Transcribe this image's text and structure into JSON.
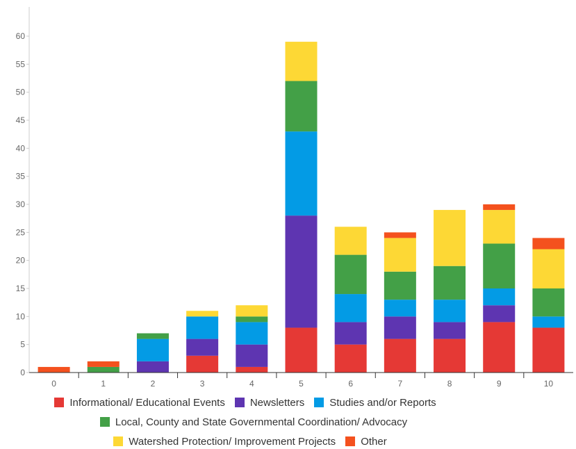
{
  "chart_data": {
    "type": "bar",
    "stacked": true,
    "categories": [
      "0",
      "1",
      "2",
      "3",
      "4",
      "5",
      "6",
      "7",
      "8",
      "9",
      "10"
    ],
    "ylim": [
      0,
      60
    ],
    "yticks": [
      0,
      5,
      10,
      15,
      20,
      25,
      30,
      35,
      40,
      45,
      50,
      55,
      60
    ],
    "grid": false,
    "legend_position": "bottom",
    "series": [
      {
        "name": "Informational/ Educational Events",
        "color": "#e53935",
        "values": [
          0,
          0,
          0,
          3,
          1,
          8,
          5,
          6,
          6,
          9,
          8
        ]
      },
      {
        "name": "Newsletters",
        "color": "#5e35b1",
        "values": [
          0,
          0,
          2,
          3,
          4,
          20,
          4,
          4,
          3,
          3,
          0
        ]
      },
      {
        "name": "Studies and/or Reports",
        "color": "#039be5",
        "values": [
          0,
          0,
          4,
          4,
          4,
          15,
          5,
          3,
          4,
          3,
          2
        ]
      },
      {
        "name": "Local, County and State Governmental Coordination/ Advocacy",
        "color": "#43a047",
        "values": [
          0,
          1,
          1,
          0,
          1,
          9,
          7,
          5,
          6,
          8,
          5
        ]
      },
      {
        "name": "Watershed Protection/ Improvement Projects",
        "color": "#fdd835",
        "values": [
          0,
          0,
          0,
          1,
          2,
          7,
          5,
          6,
          10,
          6,
          7
        ]
      },
      {
        "name": "Other",
        "color": "#f4511e",
        "values": [
          1,
          1,
          0,
          0,
          0,
          0,
          0,
          1,
          0,
          1,
          2
        ]
      }
    ],
    "legend_rows": [
      [
        0,
        1,
        2
      ],
      [
        3
      ],
      [
        4,
        5
      ]
    ]
  }
}
